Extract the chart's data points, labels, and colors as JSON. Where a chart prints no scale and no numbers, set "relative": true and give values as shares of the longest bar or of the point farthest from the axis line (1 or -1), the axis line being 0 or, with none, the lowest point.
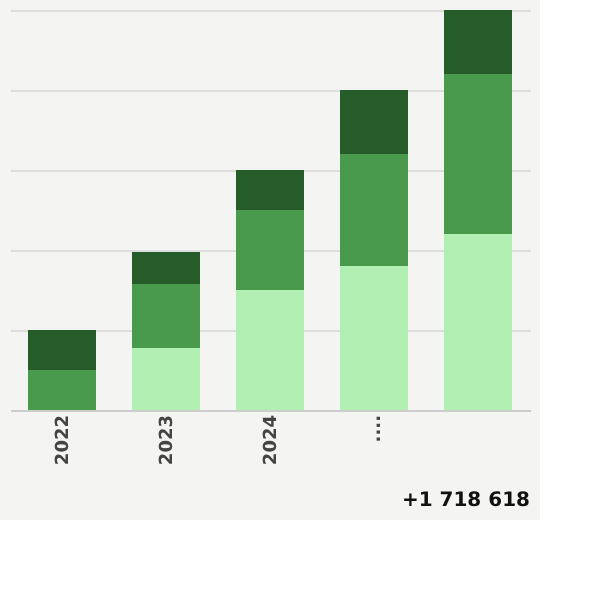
{
  "chart_data": {
    "type": "bar",
    "stacked": true,
    "relative": true,
    "grid": "y",
    "categories": [
      "2022",
      "2023",
      "2024",
      "....",
      null
    ],
    "series": [
      {
        "color": "#b2efb2",
        "values": [
          0,
          0.155,
          0.3,
          0.36,
          0.44
        ]
      },
      {
        "color": "#4a9a4e",
        "values": [
          0.1,
          0.16,
          0.2,
          0.28,
          0.4
        ]
      },
      {
        "color": "#255c2a",
        "values": [
          0.1,
          0.08,
          0.1,
          0.16,
          0.16
        ]
      }
    ],
    "annotations": [
      "+1 718 618"
    ]
  }
}
